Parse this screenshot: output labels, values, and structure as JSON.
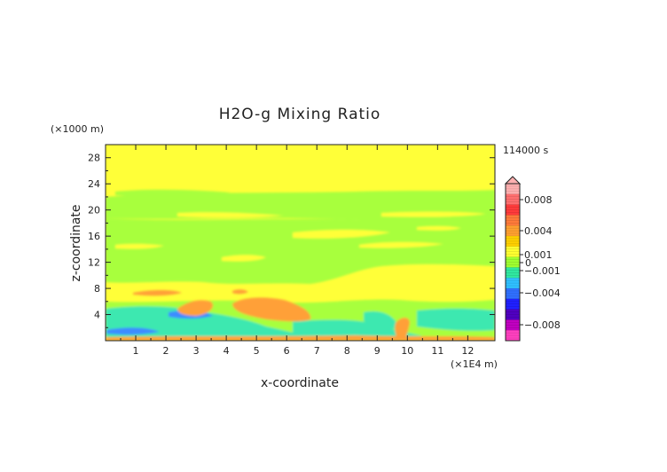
{
  "chart_data": {
    "type": "heatmap",
    "title": "H2O-g Mixing Ratio",
    "xlabel": "x-coordinate",
    "ylabel": "z-coordinate",
    "x_unit": "(×1E4 m)",
    "y_unit": "(×1000 m)",
    "time_label": "114000 s",
    "xlim": [
      0,
      12.9
    ],
    "ylim": [
      0,
      30
    ],
    "x_ticks": [
      "1",
      "2",
      "3",
      "4",
      "5",
      "6",
      "7",
      "8",
      "9",
      "10",
      "11",
      "12"
    ],
    "y_ticks": [
      "4",
      "8",
      "12",
      "16",
      "20",
      "24",
      "28"
    ],
    "colorbar": {
      "labels": [
        "0.008",
        "0.004",
        "0.001",
        "0",
        "−0.001",
        "−0.004",
        "−0.008"
      ],
      "levels": [
        0.008,
        0.004,
        0.001,
        0,
        -0.001,
        -0.004,
        -0.008
      ],
      "colors_top_to_bottom": [
        "#ffb0b0",
        "#ff6f6f",
        "#ff3b3b",
        "#ff7a3a",
        "#ffa030",
        "#ffd000",
        "#ffff30",
        "#a0ff30",
        "#30e8a0",
        "#30c0ff",
        "#3070ff",
        "#2020ff",
        "#5000c0",
        "#c000c0",
        "#ff40c0"
      ]
    },
    "fields": {
      "background": "#ffff38",
      "negative_weak": "#a8ff3c",
      "negative_mid": "#3ce8b0",
      "negative_strong": "#3c8cff",
      "positive_mid": "#ffa038",
      "positive_strong": "#ff7030"
    }
  }
}
